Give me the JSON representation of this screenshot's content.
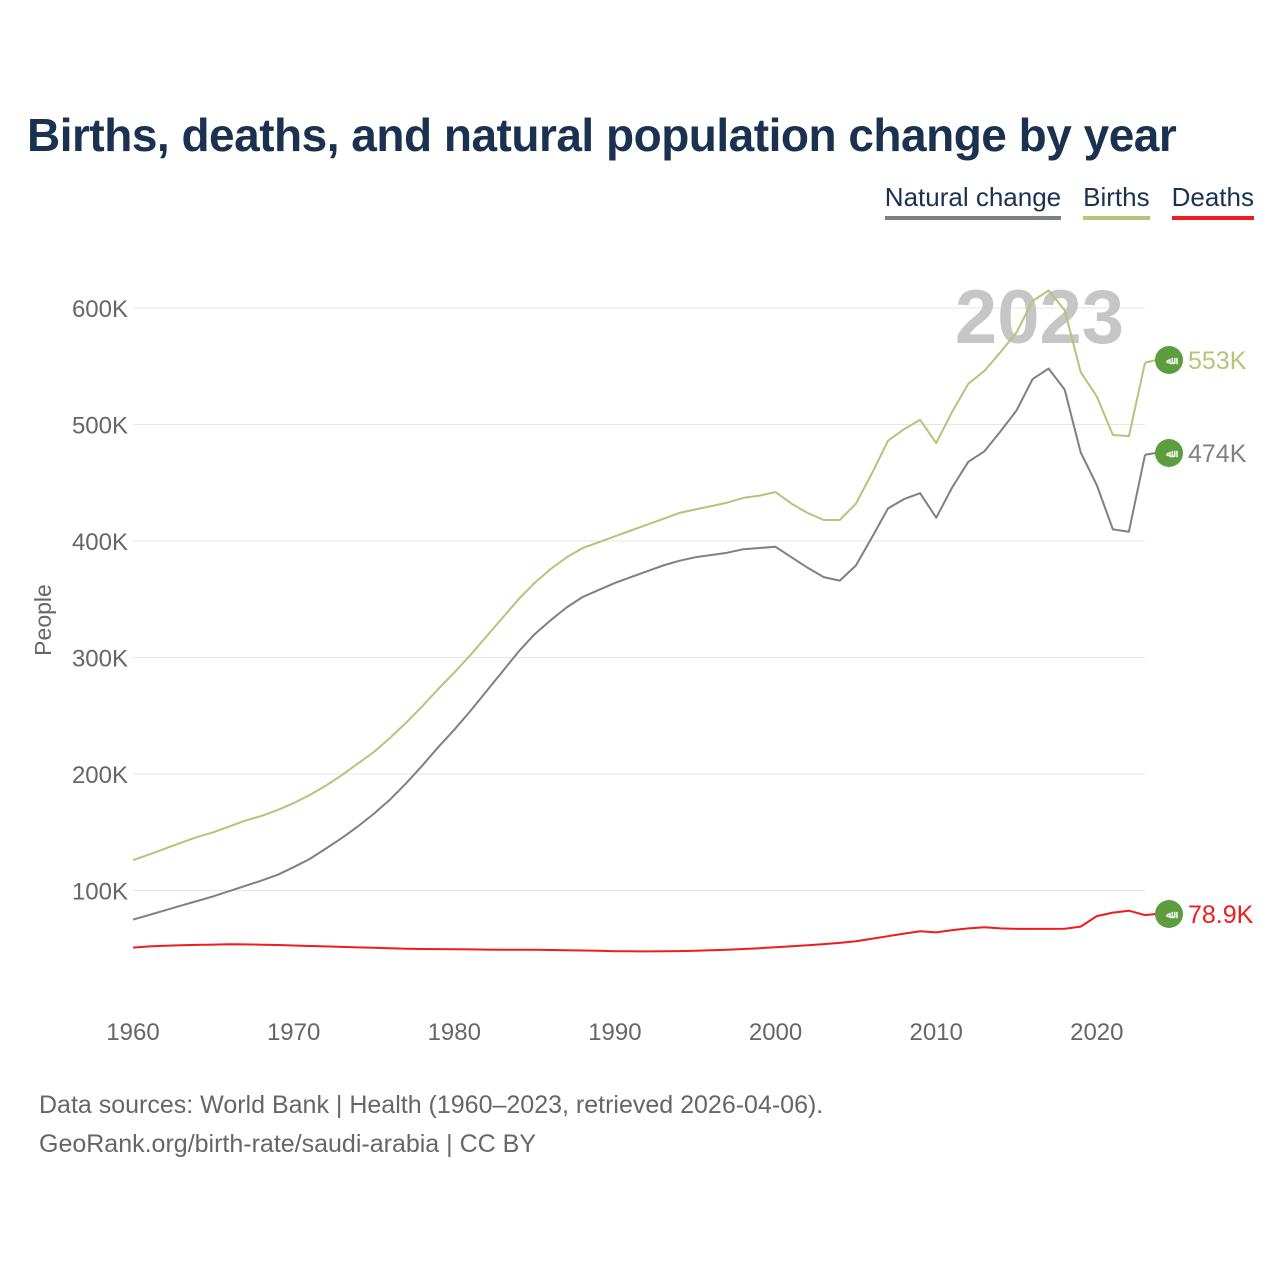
{
  "chart_data": {
    "type": "line",
    "title": "Births, deaths, and natural population change by year",
    "xlabel": "",
    "ylabel": "People",
    "xlim": [
      1960,
      2023
    ],
    "ylim": [
      0,
      650000
    ],
    "x_ticks": [
      1960,
      1970,
      1980,
      1990,
      2000,
      2010,
      2020
    ],
    "y_ticks": [
      100000,
      200000,
      300000,
      400000,
      500000,
      600000
    ],
    "y_tick_labels": [
      "100K",
      "200K",
      "300K",
      "400K",
      "500K",
      "600K"
    ],
    "grid": true,
    "year_label": "2023",
    "x": [
      1960,
      1961,
      1962,
      1963,
      1964,
      1965,
      1966,
      1967,
      1968,
      1969,
      1970,
      1971,
      1972,
      1973,
      1974,
      1975,
      1976,
      1977,
      1978,
      1979,
      1980,
      1981,
      1982,
      1983,
      1984,
      1985,
      1986,
      1987,
      1988,
      1989,
      1990,
      1991,
      1992,
      1993,
      1994,
      1995,
      1996,
      1997,
      1998,
      1999,
      2000,
      2001,
      2002,
      2003,
      2004,
      2005,
      2006,
      2007,
      2008,
      2009,
      2010,
      2011,
      2012,
      2013,
      2014,
      2015,
      2016,
      2017,
      2018,
      2019,
      2020,
      2021,
      2022,
      2023
    ],
    "series": [
      {
        "name": "Natural change",
        "color": "#808080",
        "end_label": "474K",
        "values": [
          75000,
          79000,
          83000,
          87000,
          91000,
          95000,
          99500,
          104000,
          108500,
          113500,
          120000,
          127000,
          136000,
          145000,
          155000,
          166000,
          178000,
          192000,
          207000,
          223000,
          238000,
          254000,
          271000,
          288000,
          305000,
          320000,
          332000,
          343000,
          352000,
          358000,
          364000,
          369000,
          374000,
          379000,
          383000,
          386000,
          388000,
          390000,
          393000,
          394000,
          395000,
          386000,
          377000,
          369000,
          366000,
          379000,
          403000,
          428000,
          436000,
          441000,
          420000,
          446000,
          468000,
          477000,
          494000,
          512000,
          539000,
          548000,
          530000,
          476000,
          448000,
          410000,
          408000,
          474000
        ]
      },
      {
        "name": "Births",
        "color": "#b5c47a",
        "end_label": "553K",
        "values": [
          126000,
          131000,
          136000,
          141000,
          146000,
          150000,
          155000,
          160000,
          164000,
          169000,
          175000,
          182000,
          190000,
          199000,
          209000,
          219000,
          231000,
          244000,
          258000,
          273000,
          287000,
          302000,
          318000,
          334000,
          350000,
          364000,
          376000,
          386000,
          394000,
          399000,
          404000,
          409000,
          414000,
          419000,
          424000,
          427000,
          430000,
          433000,
          437000,
          439000,
          442000,
          432000,
          424000,
          418000,
          418000,
          432000,
          458000,
          486000,
          496000,
          504000,
          484000,
          511000,
          535000,
          546000,
          562000,
          579000,
          606000,
          615000,
          598000,
          545000,
          524000,
          491000,
          490000,
          553000
        ]
      },
      {
        "name": "Deaths",
        "color": "#ee1c1c",
        "end_label": "78.9K",
        "values": [
          51000,
          52000,
          52500,
          53000,
          53300,
          53600,
          53800,
          53700,
          53500,
          53200,
          52800,
          52400,
          52000,
          51600,
          51200,
          50800,
          50400,
          50000,
          49800,
          49700,
          49500,
          49400,
          49300,
          49200,
          49200,
          49100,
          48900,
          48700,
          48500,
          48200,
          47900,
          47800,
          47700,
          47800,
          48000,
          48300,
          48700,
          49200,
          49800,
          50500,
          51300,
          52100,
          53000,
          54000,
          55000,
          56500,
          58500,
          60800,
          63000,
          65000,
          64000,
          66000,
          67500,
          68500,
          67500,
          67000,
          67000,
          67000,
          67200,
          69000,
          78000,
          81000,
          82700,
          78900
        ]
      }
    ]
  },
  "legend": {
    "items": [
      "Natural change",
      "Births",
      "Deaths"
    ],
    "colors": [
      "#808080",
      "#b5c47a",
      "#ee1c1c"
    ]
  },
  "flag": {
    "text": "ﷲ",
    "color": "#5d9c3f"
  },
  "footer": {
    "line1": "Data sources: World Bank | Health (1960–2023, retrieved 2026-04-06).",
    "line2": "GeoRank.org/birth-rate/saudi-arabia | CC BY"
  }
}
